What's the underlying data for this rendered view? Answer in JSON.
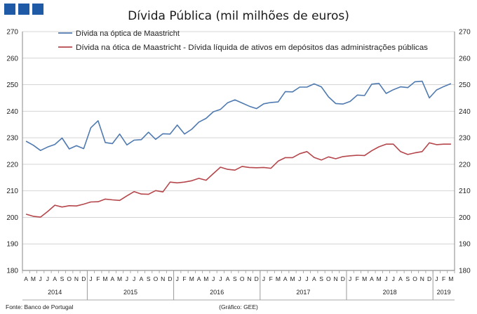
{
  "header": {
    "logo_squares": 3,
    "logo_color": "#1f5aa6"
  },
  "footer": {
    "source": "Fonte: Banco de Portugal",
    "credit": "(Gráfico: GEE)"
  },
  "chart_data": {
    "type": "line",
    "title": "Dívida Pública (mil milhões de euros)",
    "ylim": [
      180,
      270
    ],
    "yticks": [
      180,
      190,
      200,
      210,
      220,
      230,
      240,
      250,
      260,
      270
    ],
    "dual_axis": true,
    "legend_position": "top",
    "month_labels": [
      "A",
      "M",
      "J",
      "J",
      "A",
      "S",
      "O",
      "N",
      "D",
      "J",
      "F",
      "M",
      "A",
      "M",
      "J",
      "J",
      "A",
      "S",
      "O",
      "N",
      "D",
      "J",
      "F",
      "M",
      "A",
      "M",
      "J",
      "J",
      "A",
      "S",
      "O",
      "N",
      "D",
      "J",
      "F",
      "M",
      "A",
      "M",
      "J",
      "J",
      "A",
      "S",
      "O",
      "N",
      "D",
      "J",
      "F",
      "M",
      "A",
      "M",
      "J",
      "J",
      "A",
      "S",
      "O",
      "N",
      "D",
      "J",
      "F",
      "M"
    ],
    "years": [
      {
        "label": "2014",
        "start": 0,
        "end": 8
      },
      {
        "label": "2015",
        "start": 9,
        "end": 20
      },
      {
        "label": "2016",
        "start": 21,
        "end": 32
      },
      {
        "label": "2017",
        "start": 33,
        "end": 44
      },
      {
        "label": "2018",
        "start": 45,
        "end": 56
      },
      {
        "label": "2019",
        "start": 57,
        "end": 59
      }
    ],
    "series": [
      {
        "name": "Dívida na óptica de Maastricht",
        "color": "#4f7ab0",
        "values": [
          228.7,
          227.2,
          225.2,
          226.5,
          227.5,
          229.9,
          225.8,
          227.0,
          225.9,
          233.8,
          236.4,
          228.2,
          227.8,
          231.4,
          227.3,
          229.1,
          229.3,
          232.1,
          229.4,
          231.5,
          231.4,
          234.8,
          231.4,
          233.2,
          235.9,
          237.3,
          239.8,
          240.7,
          243.2,
          244.3,
          243.1,
          241.9,
          241.0,
          242.8,
          243.3,
          243.5,
          247.4,
          247.3,
          249.1,
          249.1,
          250.3,
          249.2,
          245.4,
          242.9,
          242.7,
          243.7,
          246.1,
          245.9,
          250.2,
          250.5,
          246.7,
          248.1,
          249.2,
          248.9,
          251.1,
          251.3,
          245.0,
          248.0,
          249.3,
          250.4
        ]
      },
      {
        "name": "Dívida na ótica de Maastricht - Dívida líquida de ativos em depósitos das administrações públicas",
        "color": "#b5464b",
        "values": [
          201.2,
          200.4,
          200.1,
          202.2,
          204.6,
          203.9,
          204.4,
          204.3,
          205.0,
          205.8,
          205.9,
          206.9,
          206.6,
          206.4,
          208.1,
          209.7,
          208.8,
          208.7,
          210.1,
          209.6,
          213.3,
          213.0,
          213.3,
          213.8,
          214.7,
          214.0,
          216.5,
          218.9,
          218.1,
          217.8,
          219.2,
          218.8,
          218.7,
          218.8,
          218.5,
          221.2,
          222.5,
          222.5,
          224.0,
          224.8,
          222.6,
          221.6,
          222.8,
          222.1,
          222.9,
          223.2,
          223.4,
          223.3,
          225.1,
          226.6,
          227.6,
          227.6,
          224.8,
          223.7,
          224.3,
          224.8,
          228.1,
          227.4,
          227.6,
          227.6
        ]
      }
    ]
  }
}
